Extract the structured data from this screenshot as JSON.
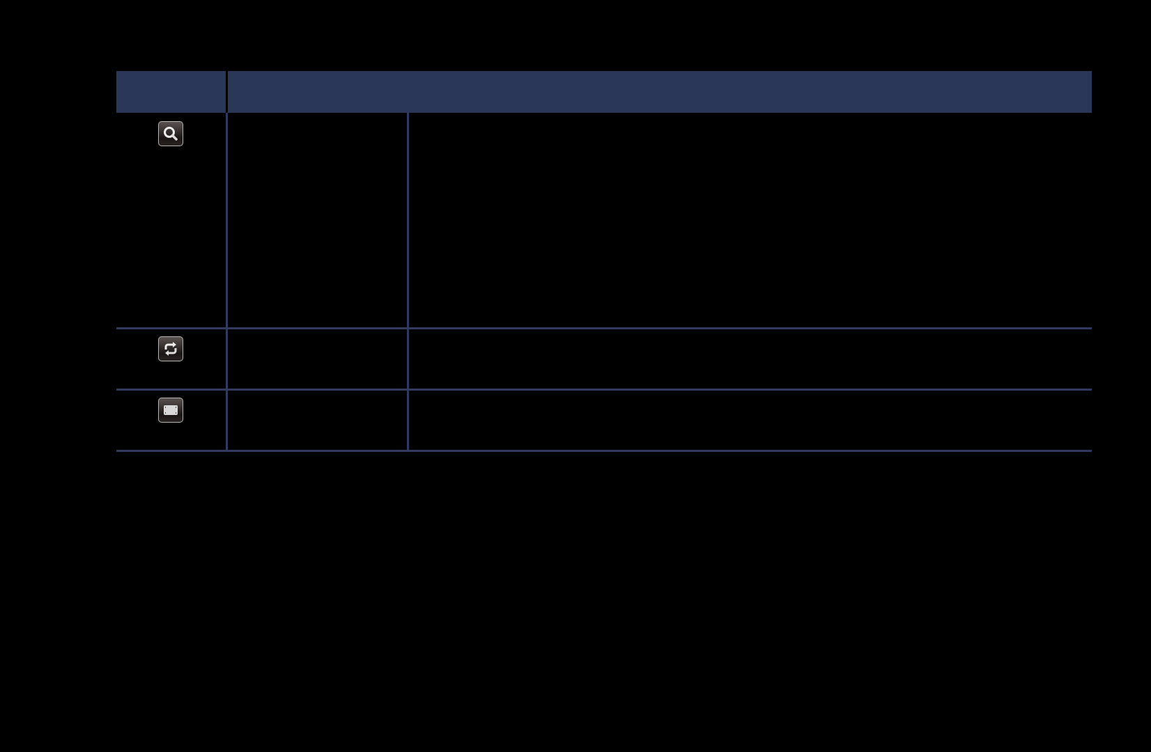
{
  "table": {
    "header_color": "#2b3758",
    "border_color": "#2e3a5e",
    "rows": [
      {
        "icon": "search-icon"
      },
      {
        "icon": "repeat-icon"
      },
      {
        "icon": "screen-size-icon"
      }
    ]
  }
}
